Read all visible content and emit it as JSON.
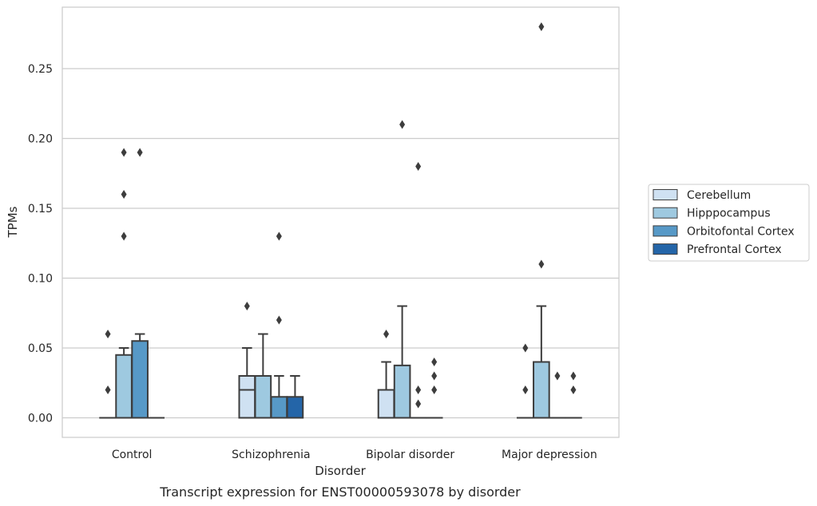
{
  "chart_data": {
    "type": "box",
    "title": "",
    "caption": "Transcript expression for ENST00000593078 by disorder",
    "xlabel": "Disorder",
    "ylabel": "TPMs",
    "ylim": [
      -0.014,
      0.294
    ],
    "yticks": [
      0.0,
      0.05,
      0.1,
      0.15,
      0.2,
      0.25
    ],
    "ytick_labels": [
      "0.00",
      "0.05",
      "0.10",
      "0.15",
      "0.20",
      "0.25"
    ],
    "grid": "horizontal",
    "legend_position": "right-center",
    "categories": [
      "Control",
      "Schizophrenia",
      "Bipolar disorder",
      "Major depression"
    ],
    "series": [
      {
        "name": "Cerebellum",
        "color": "#cfe1f2",
        "boxes": [
          {
            "q1": 0,
            "median": 0,
            "q3": 0,
            "whisker_low": 0,
            "whisker_high": 0,
            "outliers": [
              0.02,
              0.06
            ]
          },
          {
            "q1": 0,
            "median": 0.02,
            "q3": 0.03,
            "whisker_low": 0,
            "whisker_high": 0.05,
            "outliers": [
              0.08
            ]
          },
          {
            "q1": 0,
            "median": 0,
            "q3": 0.02,
            "whisker_low": 0,
            "whisker_high": 0.04,
            "outliers": [
              0.06
            ]
          },
          {
            "q1": 0,
            "median": 0,
            "q3": 0,
            "whisker_low": 0,
            "whisker_high": 0,
            "outliers": [
              0.02,
              0.05
            ]
          }
        ]
      },
      {
        "name": "Hipppocampus",
        "color": "#9ec9e0",
        "boxes": [
          {
            "q1": 0,
            "median": 0,
            "q3": 0.045,
            "whisker_low": 0,
            "whisker_high": 0.05,
            "outliers": [
              0.13,
              0.16,
              0.19
            ]
          },
          {
            "q1": 0,
            "median": 0,
            "q3": 0.03,
            "whisker_low": 0,
            "whisker_high": 0.06,
            "outliers": []
          },
          {
            "q1": 0,
            "median": 0,
            "q3": 0.0375,
            "whisker_low": 0,
            "whisker_high": 0.08,
            "outliers": [
              0.21
            ]
          },
          {
            "q1": 0,
            "median": 0,
            "q3": 0.04,
            "whisker_low": 0,
            "whisker_high": 0.08,
            "outliers": [
              0.11,
              0.28
            ]
          }
        ]
      },
      {
        "name": "Orbitofontal Cortex",
        "color": "#5799c7",
        "boxes": [
          {
            "q1": 0,
            "median": 0,
            "q3": 0.055,
            "whisker_low": 0,
            "whisker_high": 0.06,
            "outliers": [
              0.19
            ]
          },
          {
            "q1": 0,
            "median": 0,
            "q3": 0.015,
            "whisker_low": 0,
            "whisker_high": 0.03,
            "outliers": [
              0.07,
              0.13
            ]
          },
          {
            "q1": 0,
            "median": 0,
            "q3": 0,
            "whisker_low": 0,
            "whisker_high": 0,
            "outliers": [
              0.01,
              0.02,
              0.18
            ]
          },
          {
            "q1": 0,
            "median": 0,
            "q3": 0,
            "whisker_low": 0,
            "whisker_high": 0,
            "outliers": [
              0.03
            ]
          }
        ]
      },
      {
        "name": "Prefrontal Cortex",
        "color": "#2465a8",
        "boxes": [
          {
            "q1": 0,
            "median": 0,
            "q3": 0,
            "whisker_low": 0,
            "whisker_high": 0,
            "outliers": []
          },
          {
            "q1": 0,
            "median": 0,
            "q3": 0.015,
            "whisker_low": 0,
            "whisker_high": 0.03,
            "outliers": []
          },
          {
            "q1": 0,
            "median": 0,
            "q3": 0,
            "whisker_low": 0,
            "whisker_high": 0,
            "outliers": [
              0.02,
              0.03,
              0.04
            ]
          },
          {
            "q1": 0,
            "median": 0,
            "q3": 0,
            "whisker_low": 0,
            "whisker_high": 0,
            "outliers": [
              0.02,
              0.03
            ]
          }
        ]
      }
    ]
  }
}
